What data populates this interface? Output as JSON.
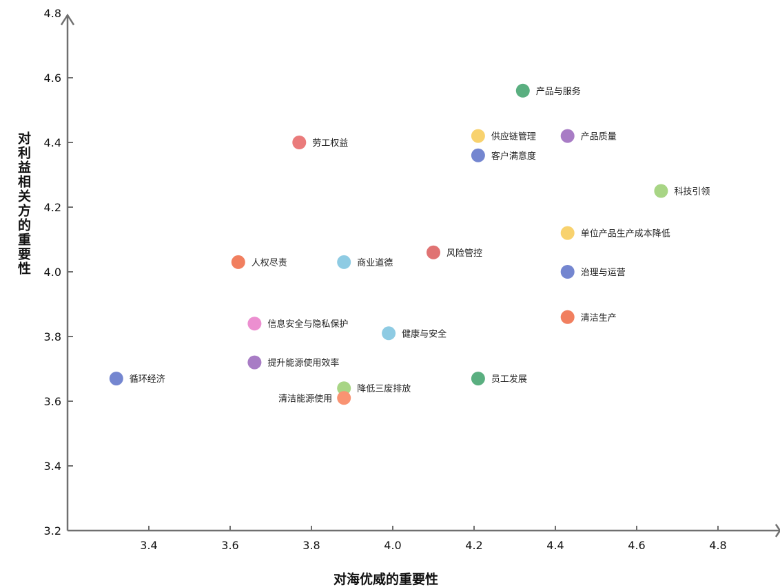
{
  "chart_data": {
    "type": "scatter",
    "xlabel": "对海优威的重要性",
    "ylabel": "对利益相关方的重要性",
    "xlim": [
      3.2,
      4.95
    ],
    "ylim": [
      3.2,
      4.8
    ],
    "xticks": [
      "3.4",
      "3.6",
      "3.8",
      "4.0",
      "4.2",
      "4.4",
      "4.6",
      "4.8"
    ],
    "yticks": [
      "3.2",
      "3.4",
      "3.6",
      "3.8",
      "4.0",
      "4.2",
      "4.4",
      "4.6",
      "4.8"
    ],
    "grid": false,
    "points": [
      {
        "label": "产品与服务",
        "x": 4.32,
        "y": 4.56,
        "color": "#5aaf80",
        "label_side": "right"
      },
      {
        "label": "供应链管理",
        "x": 4.21,
        "y": 4.42,
        "color": "#f8d26e",
        "label_side": "right"
      },
      {
        "label": "产品质量",
        "x": 4.43,
        "y": 4.42,
        "color": "#a87cc5",
        "label_side": "right"
      },
      {
        "label": "劳工权益",
        "x": 3.77,
        "y": 4.4,
        "color": "#ea7b7b",
        "label_side": "right"
      },
      {
        "label": "客户满意度",
        "x": 4.21,
        "y": 4.36,
        "color": "#7486d0",
        "label_side": "right"
      },
      {
        "label": "科技引领",
        "x": 4.66,
        "y": 4.25,
        "color": "#a8d585",
        "label_side": "right"
      },
      {
        "label": "单位产品生产成本降低",
        "x": 4.43,
        "y": 4.12,
        "color": "#f8d26e",
        "label_side": "right"
      },
      {
        "label": "风险管控",
        "x": 4.1,
        "y": 4.06,
        "color": "#e07373",
        "label_side": "right"
      },
      {
        "label": "人权尽责",
        "x": 3.62,
        "y": 4.03,
        "color": "#f17f5f",
        "label_side": "right"
      },
      {
        "label": "商业道德",
        "x": 3.88,
        "y": 4.03,
        "color": "#8ecbe3",
        "label_side": "right"
      },
      {
        "label": "治理与运营",
        "x": 4.43,
        "y": 4.0,
        "color": "#7486d0",
        "label_side": "right"
      },
      {
        "label": "清洁生产",
        "x": 4.43,
        "y": 3.86,
        "color": "#f17f5f",
        "label_side": "right"
      },
      {
        "label": "信息安全与隐私保护",
        "x": 3.66,
        "y": 3.84,
        "color": "#ec8fd0",
        "label_side": "right"
      },
      {
        "label": "健康与安全",
        "x": 3.99,
        "y": 3.81,
        "color": "#8ecbe3",
        "label_side": "right"
      },
      {
        "label": "提升能源使用效率",
        "x": 3.66,
        "y": 3.72,
        "color": "#a87cc5",
        "label_side": "right"
      },
      {
        "label": "循环经济",
        "x": 3.32,
        "y": 3.67,
        "color": "#7486d0",
        "label_side": "right"
      },
      {
        "label": "员工发展",
        "x": 4.21,
        "y": 3.67,
        "color": "#5aaf80",
        "label_side": "right"
      },
      {
        "label": "降低三废排放",
        "x": 3.88,
        "y": 3.64,
        "color": "#a8d585",
        "label_side": "right"
      },
      {
        "label": "清洁能源使用",
        "x": 3.88,
        "y": 3.61,
        "color": "#f99372",
        "label_side": "left"
      }
    ]
  }
}
